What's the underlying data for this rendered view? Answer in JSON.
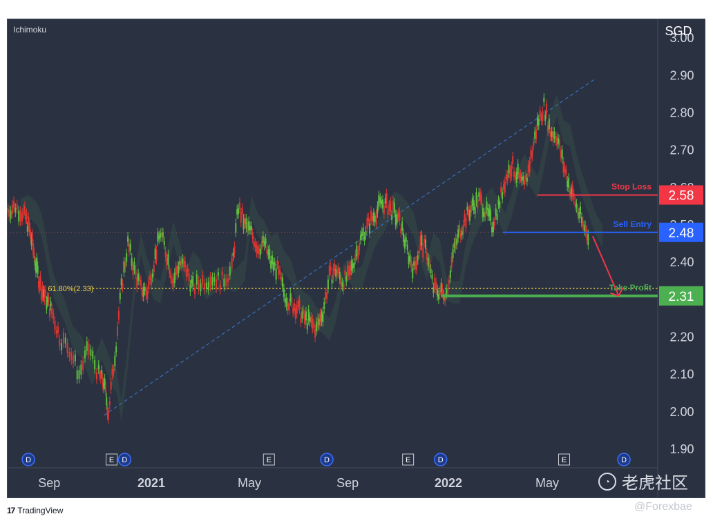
{
  "indicator": "Ichimoku",
  "currency": "SGD",
  "branding": {
    "tradingview": "TradingView",
    "watermark": "老虎社区",
    "handle": "@Forexbae"
  },
  "colors": {
    "background": "#2a3242",
    "up": "#5fbf3f",
    "down": "#e0352f",
    "stop_loss": "#f23645",
    "sell_entry": "#2962ff",
    "take_profit": "#4caf50",
    "fib": "#f5d442"
  },
  "chart_data": {
    "type": "line",
    "title": "",
    "xlabel": "",
    "ylabel": "SGD",
    "ylim": [
      1.85,
      3.05
    ],
    "y_ticks": [
      "3.00",
      "2.90",
      "2.80",
      "2.70",
      "2.60",
      "2.50",
      "2.40",
      "2.30",
      "2.20",
      "2.10",
      "2.00",
      "1.90"
    ],
    "x_ticks": [
      {
        "label": "Sep",
        "t": 0.064,
        "bold": false
      },
      {
        "label": "2021",
        "t": 0.221,
        "bold": true
      },
      {
        "label": "May",
        "t": 0.372,
        "bold": false
      },
      {
        "label": "Sep",
        "t": 0.523,
        "bold": false
      },
      {
        "label": "2022",
        "t": 0.678,
        "bold": true
      },
      {
        "label": "May",
        "t": 0.83,
        "bold": false
      }
    ],
    "x_domain": [
      0,
      1
    ],
    "series": [
      {
        "x": [
          0.0,
          0.012,
          0.025,
          0.032,
          0.038,
          0.045,
          0.052,
          0.06,
          0.068,
          0.08,
          0.095,
          0.11,
          0.125,
          0.14,
          0.148,
          0.155,
          0.165,
          0.175,
          0.185,
          0.195,
          0.205,
          0.215,
          0.225,
          0.235,
          0.245,
          0.255,
          0.265,
          0.275,
          0.285,
          0.3,
          0.315,
          0.33,
          0.345,
          0.355,
          0.365,
          0.375,
          0.385,
          0.395,
          0.405,
          0.415,
          0.425,
          0.435,
          0.445,
          0.455,
          0.465,
          0.475,
          0.485,
          0.495,
          0.505,
          0.515,
          0.525,
          0.535,
          0.545,
          0.555,
          0.565,
          0.575,
          0.585,
          0.595,
          0.605,
          0.615,
          0.625,
          0.635,
          0.645,
          0.655,
          0.665,
          0.675,
          0.685,
          0.695,
          0.705,
          0.715,
          0.725,
          0.735,
          0.745,
          0.755,
          0.765,
          0.775,
          0.785,
          0.795,
          0.805,
          0.815,
          0.825,
          0.835,
          0.845,
          0.855,
          0.865,
          0.875,
          0.885,
          0.895
        ],
        "values": [
          2.54,
          2.55,
          2.53,
          2.5,
          2.45,
          2.38,
          2.33,
          2.3,
          2.27,
          2.2,
          2.17,
          2.1,
          2.17,
          2.1,
          2.08,
          2.0,
          2.15,
          2.33,
          2.45,
          2.38,
          2.33,
          2.32,
          2.4,
          2.48,
          2.42,
          2.35,
          2.4,
          2.38,
          2.33,
          2.35,
          2.36,
          2.35,
          2.38,
          2.55,
          2.5,
          2.48,
          2.44,
          2.45,
          2.4,
          2.38,
          2.32,
          2.29,
          2.28,
          2.25,
          2.24,
          2.22,
          2.27,
          2.36,
          2.38,
          2.35,
          2.36,
          2.42,
          2.47,
          2.5,
          2.53,
          2.56,
          2.55,
          2.53,
          2.5,
          2.43,
          2.38,
          2.45,
          2.43,
          2.33,
          2.32,
          2.32,
          2.42,
          2.48,
          2.52,
          2.55,
          2.57,
          2.54,
          2.5,
          2.55,
          2.62,
          2.66,
          2.63,
          2.6,
          2.68,
          2.77,
          2.82,
          2.75,
          2.74,
          2.66,
          2.6,
          2.55,
          2.5,
          2.47
        ]
      }
    ],
    "levels": [
      {
        "name": "Stop Loss",
        "value": 2.58,
        "value_label": "2.58",
        "color": "#f23645",
        "t_start": 0.815,
        "t_end": 1.0
      },
      {
        "name": "Sell Entry",
        "value": 2.48,
        "value_label": "2.48",
        "color": "#2962ff",
        "t_start": 0.762,
        "t_end": 1.0
      },
      {
        "name": "Take Profit",
        "value": 2.31,
        "value_label": "2.31",
        "color": "#4caf50",
        "t_start": 0.667,
        "t_end": 1.0
      }
    ],
    "fib_level": {
      "label": "61.80%(2.33)",
      "value": 2.33,
      "t_start": 0.062,
      "t_end": 1.0
    },
    "trendline": {
      "t1": 0.148,
      "v1": 1.99,
      "t2": 0.903,
      "v2": 2.89
    },
    "projection": {
      "t1": 0.9,
      "v1": 2.47,
      "t2": 0.94,
      "v2": 2.31
    },
    "event_markers": [
      {
        "t": 0.032,
        "label": "D"
      },
      {
        "t": 0.16,
        "label": "E"
      },
      {
        "t": 0.18,
        "label": "D"
      },
      {
        "t": 0.402,
        "label": "E"
      },
      {
        "t": 0.491,
        "label": "D"
      },
      {
        "t": 0.616,
        "label": "E"
      },
      {
        "t": 0.666,
        "label": "D"
      },
      {
        "t": 0.856,
        "label": "E"
      },
      {
        "t": 0.948,
        "label": "D"
      }
    ]
  }
}
